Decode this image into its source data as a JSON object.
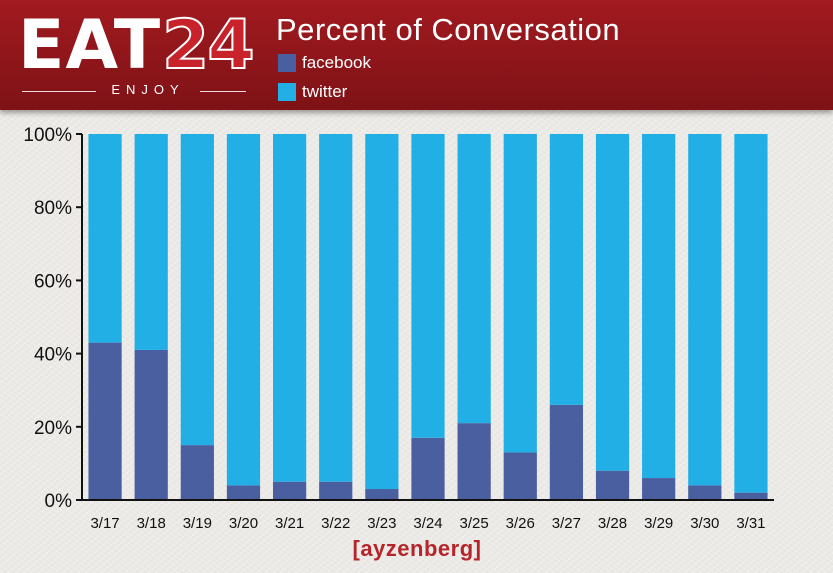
{
  "brand": {
    "logo_left": "EAT",
    "logo_right": "24",
    "tagline": "ENJOY",
    "footer_logo": "[ayzenberg]"
  },
  "colors": {
    "header": "#9c191e",
    "facebook": "#4a5fa0",
    "twitter": "#21afe6"
  },
  "chart_data": {
    "type": "bar",
    "stacked": true,
    "title": "Percent of Conversation",
    "categories": [
      "3/17",
      "3/18",
      "3/19",
      "3/20",
      "3/21",
      "3/22",
      "3/23",
      "3/24",
      "3/25",
      "3/26",
      "3/27",
      "3/28",
      "3/29",
      "3/30",
      "3/31"
    ],
    "series": [
      {
        "name": "facebook",
        "color": "#4a5fa0",
        "values": [
          43,
          41,
          15,
          4,
          5,
          5,
          3,
          17,
          21,
          13,
          26,
          8,
          6,
          4,
          2
        ]
      },
      {
        "name": "twitter",
        "color": "#21afe6",
        "values": [
          57,
          59,
          85,
          96,
          95,
          95,
          97,
          83,
          79,
          87,
          74,
          92,
          94,
          96,
          98
        ]
      }
    ],
    "yticks": [
      "0%",
      "20%",
      "40%",
      "60%",
      "80%",
      "100%"
    ],
    "ylim": [
      0,
      100
    ],
    "legend": "top"
  }
}
